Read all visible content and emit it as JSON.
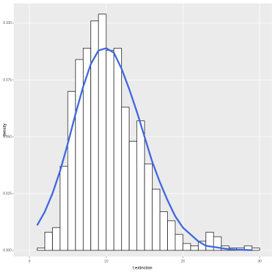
{
  "chart_data": {
    "type": "histogram",
    "x_label": "t.extinction",
    "y_label": "density",
    "bins": [
      0,
      1,
      2,
      3,
      4,
      5,
      6,
      7,
      8,
      9,
      10,
      11,
      12,
      13,
      14,
      15,
      16,
      17,
      18,
      19,
      20,
      21,
      22,
      23,
      24,
      25,
      26,
      27,
      28,
      29,
      30
    ],
    "values": [
      0,
      0.001,
      0.008,
      0.01,
      0.037,
      0.07,
      0.084,
      0.089,
      0.101,
      0.104,
      0.088,
      0.089,
      0.063,
      0.048,
      0.057,
      0.038,
      0.027,
      0.017,
      0.013,
      0.007,
      0.003,
      0.002,
      0.004,
      0.008,
      0.006,
      0.002,
      0.001,
      0.001,
      0.002,
      0.001
    ],
    "bar_fill": "#ffffff",
    "bar_stroke": "#000000",
    "curve": {
      "x": [
        1,
        2,
        3,
        4,
        5,
        6,
        7,
        8,
        9,
        10,
        11,
        12,
        13,
        14,
        15,
        16,
        17,
        18,
        19,
        20,
        21,
        22,
        23,
        24,
        25,
        26,
        27,
        28,
        29
      ],
      "values": [
        0.011,
        0.017,
        0.025,
        0.035,
        0.047,
        0.06,
        0.072,
        0.082,
        0.088,
        0.089,
        0.087,
        0.08,
        0.071,
        0.061,
        0.05,
        0.039,
        0.03,
        0.022,
        0.015,
        0.01,
        0.007,
        0.004,
        0.002,
        0.0015,
        0.001,
        0.0005,
        0.0003,
        0.0002,
        0.0001
      ],
      "color": "#4169e1"
    },
    "xlim": [
      -2.05,
      31.6
    ],
    "ylim": [
      -0.0027,
      0.1087
    ],
    "xticks": [
      0,
      10,
      20,
      30
    ],
    "yticks": [
      {
        "value": 0,
        "label": "0.000"
      },
      {
        "value": 0.025,
        "label": "0.025"
      },
      {
        "value": 0.05,
        "label": "0.050"
      },
      {
        "value": 0.075,
        "label": "0.075"
      },
      {
        "value": 0.1,
        "label": "0.100"
      }
    ],
    "grid": true
  }
}
